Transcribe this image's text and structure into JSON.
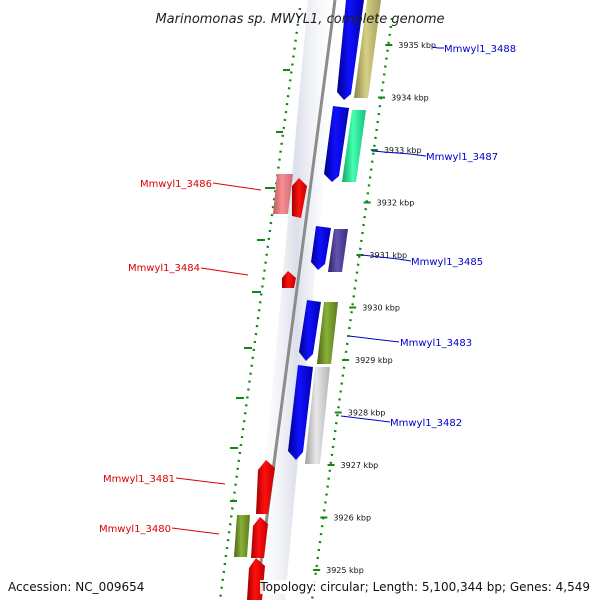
{
  "map": {
    "title": "Marinomonas sp. MWYL1, complete genome",
    "accession_label": "Accession:",
    "accession": "NC_009654",
    "topology_label": "Topology:",
    "topology": "circular",
    "length_label": "Length:",
    "length": "5,100,344 bp",
    "genes_label": "Genes:",
    "genes": "4,549"
  },
  "ticks": [
    {
      "kbp": 3935,
      "label": "3935 kbp"
    },
    {
      "kbp": 3934,
      "label": "3934 kbp"
    },
    {
      "kbp": 3933,
      "label": "3933 kbp"
    },
    {
      "kbp": 3932,
      "label": "3932 kbp"
    },
    {
      "kbp": 3931,
      "label": "3931 kbp"
    },
    {
      "kbp": 3930,
      "label": "3930 kbp"
    },
    {
      "kbp": 3929,
      "label": "3929 kbp"
    },
    {
      "kbp": 3928,
      "label": "3928 kbp"
    },
    {
      "kbp": 3927,
      "label": "3927 kbp"
    },
    {
      "kbp": 3926,
      "label": "3926 kbp"
    },
    {
      "kbp": 3925,
      "label": "3925 kbp"
    }
  ],
  "labels": [
    {
      "id": "Mmwyl1_3488",
      "text": "Mmwyl1_3488",
      "strand": "plus"
    },
    {
      "id": "Mmwyl1_3487",
      "text": "Mmwyl1_3487",
      "strand": "plus"
    },
    {
      "id": "Mmwyl1_3486",
      "text": "Mmwyl1_3486",
      "strand": "minus"
    },
    {
      "id": "Mmwyl1_3485",
      "text": "Mmwyl1_3485",
      "strand": "plus"
    },
    {
      "id": "Mmwyl1_3484",
      "text": "Mmwyl1_3484",
      "strand": "minus"
    },
    {
      "id": "Mmwyl1_3483",
      "text": "Mmwyl1_3483",
      "strand": "plus"
    },
    {
      "id": "Mmwyl1_3482",
      "text": "Mmwyl1_3482",
      "strand": "plus"
    },
    {
      "id": "Mmwyl1_3481",
      "text": "Mmwyl1_3481",
      "strand": "minus"
    },
    {
      "id": "Mmwyl1_3480",
      "text": "Mmwyl1_3480",
      "strand": "minus"
    }
  ],
  "colors": {
    "plus_label": "#0000cc",
    "minus_label": "#dd0000",
    "gene_blue": "#0a0aee",
    "gene_red": "#ee0000",
    "gene_pink": "#ee7c80",
    "cog_tan": "#bdb76b",
    "cog_mint": "#22ee99",
    "cog_purple": "#4b3d8f",
    "cog_olive": "#6b8e23",
    "cog_grey": "#c8c8c8",
    "backbone": "#888888",
    "gc_dots": "#118811"
  }
}
